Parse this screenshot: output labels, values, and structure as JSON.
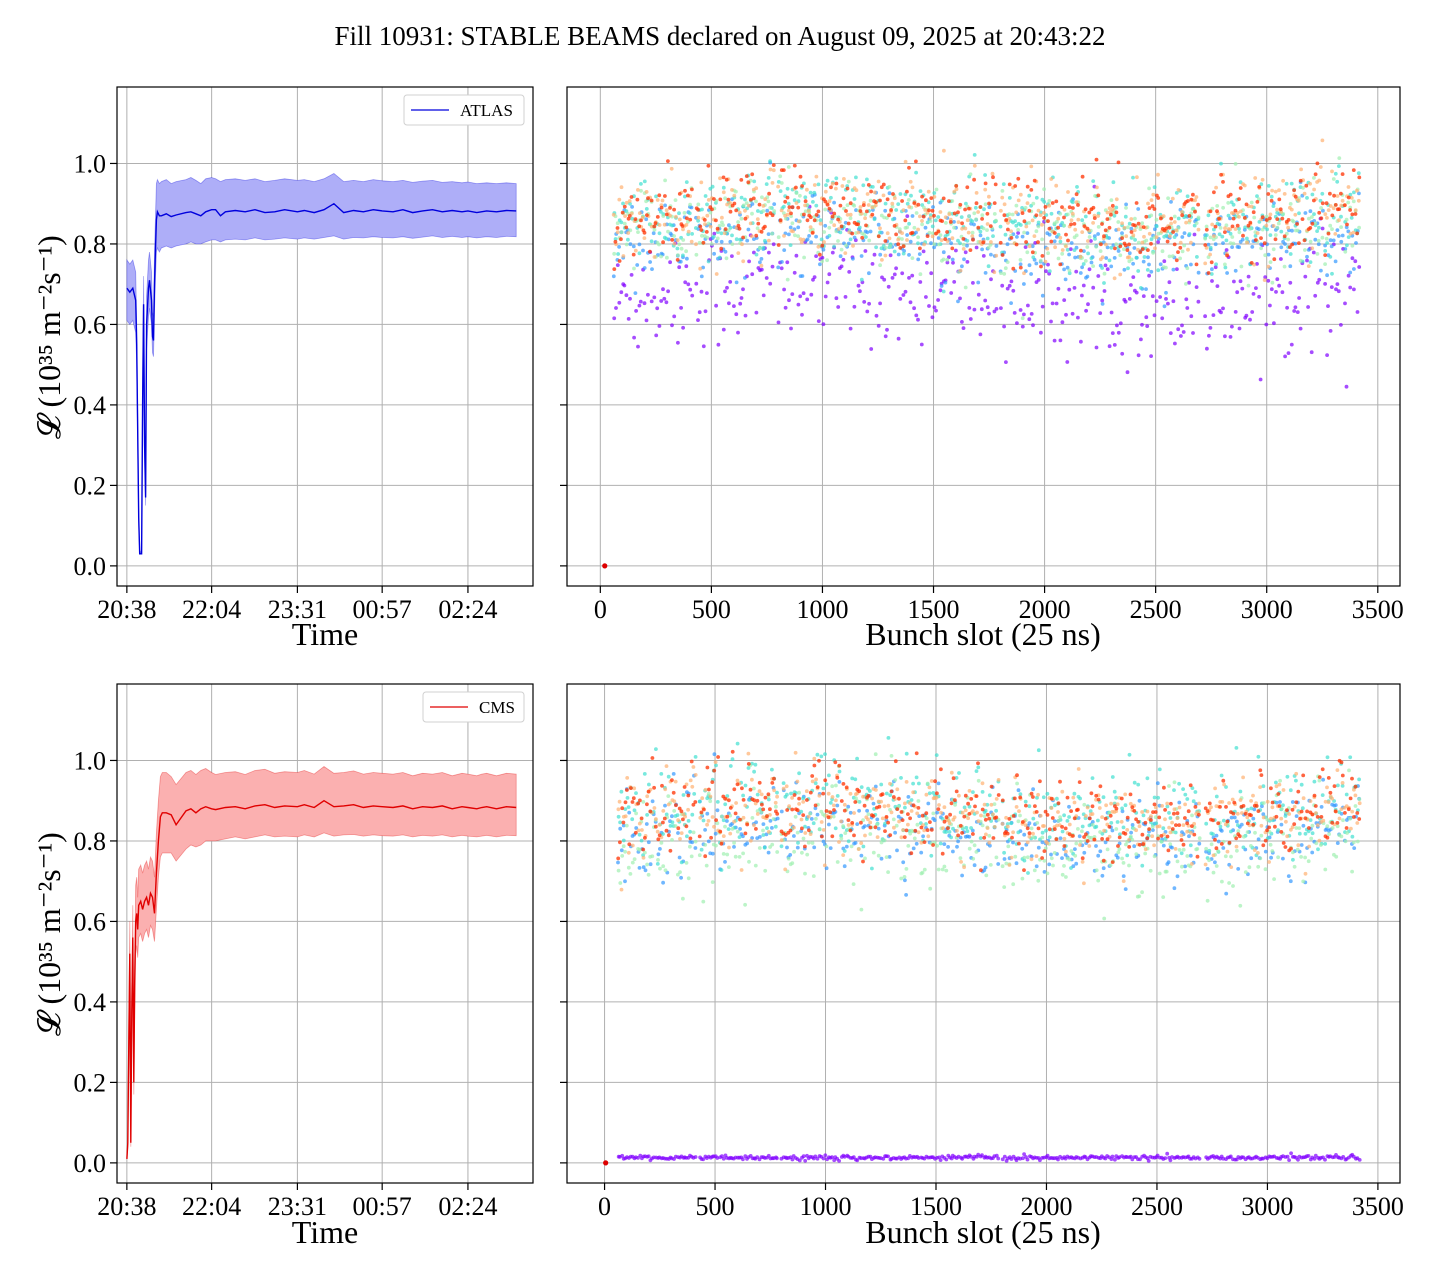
{
  "title": "Fill 10931: STABLE BEAMS declared on August 09, 2025 at 20:43:22",
  "colors": {
    "atlas_line": "#0000dd",
    "atlas_band": "#aeaef8",
    "cms_line": "#e00000",
    "cms_band": "#fbb0b0",
    "grid": "#b0b0b0",
    "scatter_palette": [
      "#8000ff",
      "#3399ff",
      "#40e0d0",
      "#a0f0b0",
      "#ffb070",
      "#ff3000"
    ]
  },
  "chart_data": [
    {
      "id": "atlas-time",
      "type": "line",
      "title": "",
      "xlabel": "Time",
      "ylabel": "𝓛 (10³⁵ m⁻²s⁻¹)",
      "xticks": [
        "20:38",
        "22:04",
        "23:31",
        "00:57",
        "02:24"
      ],
      "xtick_minutes": [
        0,
        86,
        173,
        259,
        346
      ],
      "xlim_minutes": [
        -10,
        412
      ],
      "ylim": [
        -0.05,
        1.19
      ],
      "yticks": [
        0.0,
        0.2,
        0.4,
        0.6,
        0.8,
        1.0
      ],
      "yticks_labels": [
        "0.0",
        "0.2",
        "0.4",
        "0.6",
        "0.8",
        "1.0"
      ],
      "grid": true,
      "legend": {
        "position": "top-right",
        "entries": [
          "ATLAS"
        ]
      },
      "series": [
        {
          "name": "ATLAS",
          "x_minutes": [
            0,
            3,
            6,
            9,
            10,
            12,
            13,
            15,
            16,
            17,
            18,
            19,
            20,
            22,
            23,
            25,
            26,
            27,
            28,
            29,
            30,
            31,
            33,
            35,
            40,
            45,
            50,
            60,
            65,
            70,
            75,
            80,
            86,
            90,
            95,
            100,
            110,
            120,
            130,
            140,
            150,
            160,
            173,
            180,
            190,
            200,
            210,
            220,
            230,
            240,
            250,
            259,
            270,
            280,
            290,
            300,
            310,
            320,
            330,
            340,
            346,
            355,
            365,
            375,
            385,
            395
          ],
          "values": [
            0.69,
            0.68,
            0.69,
            0.66,
            0.55,
            0.12,
            0.03,
            0.03,
            0.4,
            0.65,
            0.3,
            0.17,
            0.6,
            0.69,
            0.71,
            0.66,
            0.57,
            0.56,
            0.7,
            0.78,
            0.86,
            0.88,
            0.87,
            0.87,
            0.875,
            0.868,
            0.872,
            0.878,
            0.88,
            0.875,
            0.87,
            0.88,
            0.885,
            0.885,
            0.87,
            0.88,
            0.883,
            0.88,
            0.885,
            0.878,
            0.88,
            0.885,
            0.88,
            0.883,
            0.878,
            0.885,
            0.9,
            0.878,
            0.883,
            0.88,
            0.885,
            0.882,
            0.88,
            0.885,
            0.878,
            0.882,
            0.885,
            0.88,
            0.883,
            0.88,
            0.882,
            0.878,
            0.882,
            0.88,
            0.883,
            0.882
          ],
          "band_low": [
            0.61,
            0.6,
            0.61,
            0.58,
            0.5,
            0.1,
            0.03,
            0.03,
            0.36,
            0.58,
            0.27,
            0.15,
            0.54,
            0.62,
            0.64,
            0.6,
            0.53,
            0.52,
            0.63,
            0.71,
            0.78,
            0.79,
            0.78,
            0.79,
            0.795,
            0.79,
            0.795,
            0.8,
            0.805,
            0.8,
            0.8,
            0.805,
            0.81,
            0.81,
            0.805,
            0.81,
            0.812,
            0.81,
            0.815,
            0.81,
            0.812,
            0.815,
            0.812,
            0.815,
            0.812,
            0.816,
            0.82,
            0.812,
            0.816,
            0.815,
            0.818,
            0.816,
            0.815,
            0.818,
            0.814,
            0.817,
            0.82,
            0.816,
            0.819,
            0.816,
            0.818,
            0.815,
            0.818,
            0.816,
            0.819,
            0.818
          ],
          "band_high": [
            0.76,
            0.75,
            0.76,
            0.73,
            0.6,
            0.14,
            0.03,
            0.04,
            0.45,
            0.72,
            0.34,
            0.19,
            0.67,
            0.76,
            0.78,
            0.73,
            0.63,
            0.62,
            0.78,
            0.86,
            0.95,
            0.96,
            0.95,
            0.955,
            0.96,
            0.95,
            0.955,
            0.96,
            0.965,
            0.958,
            0.95,
            0.962,
            0.965,
            0.962,
            0.955,
            0.96,
            0.962,
            0.958,
            0.962,
            0.955,
            0.958,
            0.962,
            0.958,
            0.96,
            0.955,
            0.962,
            0.975,
            0.955,
            0.958,
            0.955,
            0.96,
            0.957,
            0.955,
            0.958,
            0.953,
            0.956,
            0.958,
            0.953,
            0.955,
            0.952,
            0.954,
            0.95,
            0.952,
            0.95,
            0.952,
            0.95
          ]
        }
      ]
    },
    {
      "id": "atlas-bunch",
      "type": "scatter",
      "title": "",
      "xlabel": "Bunch slot (25 ns)",
      "ylabel": "",
      "xticks": [
        0,
        500,
        1000,
        1500,
        2000,
        2500,
        3000,
        3500
      ],
      "xlim": [
        -150,
        3600
      ],
      "ylim": [
        -0.05,
        1.19
      ],
      "yticks": [
        0.0,
        0.2,
        0.4,
        0.6,
        0.8,
        1.0
      ],
      "grid": true,
      "bunch_range": [
        60,
        3420
      ],
      "trains": [
        [
          60,
          140
        ],
        [
          150,
          230
        ],
        [
          240,
          320
        ],
        [
          330,
          410
        ],
        [
          430,
          510
        ],
        [
          520,
          600
        ],
        [
          610,
          690
        ],
        [
          700,
          780
        ],
        [
          800,
          880
        ],
        [
          890,
          970
        ],
        [
          980,
          1060
        ],
        [
          1070,
          1150
        ],
        [
          1160,
          1240
        ],
        [
          1250,
          1330
        ],
        [
          1340,
          1420
        ],
        [
          1430,
          1510
        ],
        [
          1520,
          1600
        ],
        [
          1610,
          1690
        ],
        [
          1700,
          1780
        ],
        [
          1800,
          1880
        ],
        [
          1890,
          1970
        ],
        [
          1980,
          2060
        ],
        [
          2070,
          2150
        ],
        [
          2160,
          2240
        ],
        [
          2250,
          2330
        ],
        [
          2340,
          2420
        ],
        [
          2430,
          2510
        ],
        [
          2520,
          2600
        ],
        [
          2610,
          2690
        ],
        [
          2720,
          2800
        ],
        [
          2810,
          2890
        ],
        [
          2900,
          2980
        ],
        [
          2990,
          3070
        ],
        [
          3080,
          3160
        ],
        [
          3170,
          3250
        ],
        [
          3260,
          3340
        ],
        [
          3350,
          3420
        ]
      ],
      "color_groups": [
        {
          "color": "#8000ff",
          "level_mean": 0.68,
          "spread": 0.07
        },
        {
          "color": "#3399ff",
          "level_mean": 0.8,
          "spread": 0.05
        },
        {
          "color": "#40e0d0",
          "level_mean": 0.86,
          "spread": 0.06
        },
        {
          "color": "#a0f0b0",
          "level_mean": 0.84,
          "spread": 0.05
        },
        {
          "color": "#ffb070",
          "level_mean": 0.87,
          "spread": 0.05
        },
        {
          "color": "#ff3000",
          "level_mean": 0.87,
          "spread": 0.05
        }
      ],
      "outlier": {
        "x": 20,
        "y": 0.0,
        "color": "#dd0000"
      }
    },
    {
      "id": "cms-time",
      "type": "line",
      "title": "",
      "xlabel": "Time",
      "ylabel": "𝓛 (10³⁵ m⁻²s⁻¹)",
      "xticks": [
        "20:38",
        "22:04",
        "23:31",
        "00:57",
        "02:24"
      ],
      "xtick_minutes": [
        0,
        86,
        173,
        259,
        346
      ],
      "xlim_minutes": [
        -10,
        412
      ],
      "ylim": [
        -0.05,
        1.19
      ],
      "yticks": [
        0.0,
        0.2,
        0.4,
        0.6,
        0.8,
        1.0
      ],
      "yticks_labels": [
        "0.0",
        "0.2",
        "0.4",
        "0.6",
        "0.8",
        "1.0"
      ],
      "grid": true,
      "legend": {
        "position": "top-right",
        "entries": [
          "CMS"
        ]
      },
      "series": [
        {
          "name": "CMS",
          "x_minutes": [
            0,
            1,
            2,
            3,
            4,
            5,
            6,
            7,
            8,
            9,
            10,
            11,
            12,
            14,
            16,
            18,
            20,
            22,
            24,
            26,
            28,
            30,
            32,
            34,
            36,
            40,
            45,
            50,
            60,
            65,
            70,
            75,
            80,
            86,
            90,
            100,
            110,
            120,
            130,
            140,
            150,
            160,
            173,
            180,
            190,
            200,
            210,
            220,
            230,
            240,
            250,
            259,
            270,
            280,
            290,
            300,
            310,
            320,
            330,
            340,
            346,
            355,
            360,
            365,
            375,
            385,
            395
          ],
          "values": [
            0.01,
            0.05,
            0.3,
            0.52,
            0.05,
            0.38,
            0.56,
            0.2,
            0.45,
            0.6,
            0.62,
            0.58,
            0.64,
            0.65,
            0.63,
            0.65,
            0.66,
            0.64,
            0.67,
            0.66,
            0.62,
            0.72,
            0.8,
            0.86,
            0.87,
            0.87,
            0.865,
            0.84,
            0.875,
            0.88,
            0.87,
            0.88,
            0.885,
            0.88,
            0.878,
            0.883,
            0.885,
            0.88,
            0.887,
            0.89,
            0.883,
            0.887,
            0.885,
            0.89,
            0.883,
            0.9,
            0.885,
            0.887,
            0.89,
            0.883,
            0.887,
            0.885,
            0.883,
            0.887,
            0.88,
            0.885,
            0.883,
            0.887,
            0.88,
            0.885,
            0.883,
            0.88,
            0.883,
            0.885,
            0.88,
            0.885,
            0.883
          ],
          "band_low": [
            0.01,
            0.04,
            0.25,
            0.44,
            0.04,
            0.32,
            0.48,
            0.17,
            0.38,
            0.52,
            0.54,
            0.51,
            0.56,
            0.57,
            0.55,
            0.57,
            0.58,
            0.56,
            0.59,
            0.58,
            0.55,
            0.63,
            0.71,
            0.76,
            0.77,
            0.77,
            0.77,
            0.75,
            0.78,
            0.79,
            0.785,
            0.79,
            0.8,
            0.8,
            0.8,
            0.805,
            0.81,
            0.805,
            0.81,
            0.815,
            0.81,
            0.812,
            0.81,
            0.815,
            0.81,
            0.82,
            0.812,
            0.815,
            0.816,
            0.812,
            0.815,
            0.813,
            0.812,
            0.815,
            0.81,
            0.814,
            0.812,
            0.815,
            0.81,
            0.814,
            0.812,
            0.81,
            0.812,
            0.814,
            0.81,
            0.814,
            0.813
          ],
          "band_high": [
            0.01,
            0.06,
            0.35,
            0.6,
            0.06,
            0.44,
            0.64,
            0.23,
            0.52,
            0.69,
            0.71,
            0.66,
            0.73,
            0.74,
            0.72,
            0.74,
            0.75,
            0.73,
            0.76,
            0.75,
            0.71,
            0.82,
            0.9,
            0.96,
            0.97,
            0.97,
            0.96,
            0.94,
            0.97,
            0.975,
            0.965,
            0.975,
            0.98,
            0.97,
            0.965,
            0.97,
            0.972,
            0.965,
            0.975,
            0.978,
            0.968,
            0.972,
            0.97,
            0.975,
            0.966,
            0.985,
            0.968,
            0.97,
            0.974,
            0.966,
            0.97,
            0.968,
            0.966,
            0.97,
            0.962,
            0.968,
            0.966,
            0.97,
            0.962,
            0.968,
            0.966,
            0.962,
            0.966,
            0.968,
            0.962,
            0.968,
            0.966
          ]
        }
      ]
    },
    {
      "id": "cms-bunch",
      "type": "scatter",
      "title": "",
      "xlabel": "Bunch slot (25 ns)",
      "ylabel": "",
      "xticks": [
        0,
        500,
        1000,
        1500,
        2000,
        2500,
        3000,
        3500
      ],
      "xlim": [
        -170,
        3600
      ],
      "ylim": [
        -0.05,
        1.19
      ],
      "yticks": [
        0.0,
        0.2,
        0.4,
        0.6,
        0.8,
        1.0
      ],
      "grid": true,
      "bunch_range": [
        60,
        3420
      ],
      "trains": [
        [
          60,
          140
        ],
        [
          150,
          230
        ],
        [
          240,
          320
        ],
        [
          330,
          410
        ],
        [
          430,
          510
        ],
        [
          520,
          600
        ],
        [
          610,
          690
        ],
        [
          700,
          780
        ],
        [
          800,
          880
        ],
        [
          890,
          970
        ],
        [
          980,
          1060
        ],
        [
          1070,
          1150
        ],
        [
          1160,
          1240
        ],
        [
          1250,
          1330
        ],
        [
          1340,
          1420
        ],
        [
          1430,
          1510
        ],
        [
          1520,
          1600
        ],
        [
          1610,
          1690
        ],
        [
          1700,
          1780
        ],
        [
          1800,
          1880
        ],
        [
          1890,
          1970
        ],
        [
          1980,
          2060
        ],
        [
          2070,
          2150
        ],
        [
          2160,
          2240
        ],
        [
          2250,
          2330
        ],
        [
          2340,
          2420
        ],
        [
          2430,
          2510
        ],
        [
          2520,
          2600
        ],
        [
          2610,
          2690
        ],
        [
          2720,
          2800
        ],
        [
          2810,
          2890
        ],
        [
          2900,
          2980
        ],
        [
          2990,
          3070
        ],
        [
          3080,
          3160
        ],
        [
          3170,
          3250
        ],
        [
          3260,
          3340
        ],
        [
          3350,
          3420
        ]
      ],
      "color_groups": [
        {
          "color": "#8000ff",
          "level_mean": 0.013,
          "spread": 0.003
        },
        {
          "color": "#3399ff",
          "level_mean": 0.82,
          "spread": 0.05
        },
        {
          "color": "#40e0d0",
          "level_mean": 0.88,
          "spread": 0.06
        },
        {
          "color": "#a0f0b0",
          "level_mean": 0.8,
          "spread": 0.06
        },
        {
          "color": "#ffb070",
          "level_mean": 0.86,
          "spread": 0.05
        },
        {
          "color": "#ff3000",
          "level_mean": 0.87,
          "spread": 0.05
        }
      ],
      "outlier": {
        "x": 5,
        "y": 0.0,
        "color": "#dd0000"
      }
    }
  ]
}
